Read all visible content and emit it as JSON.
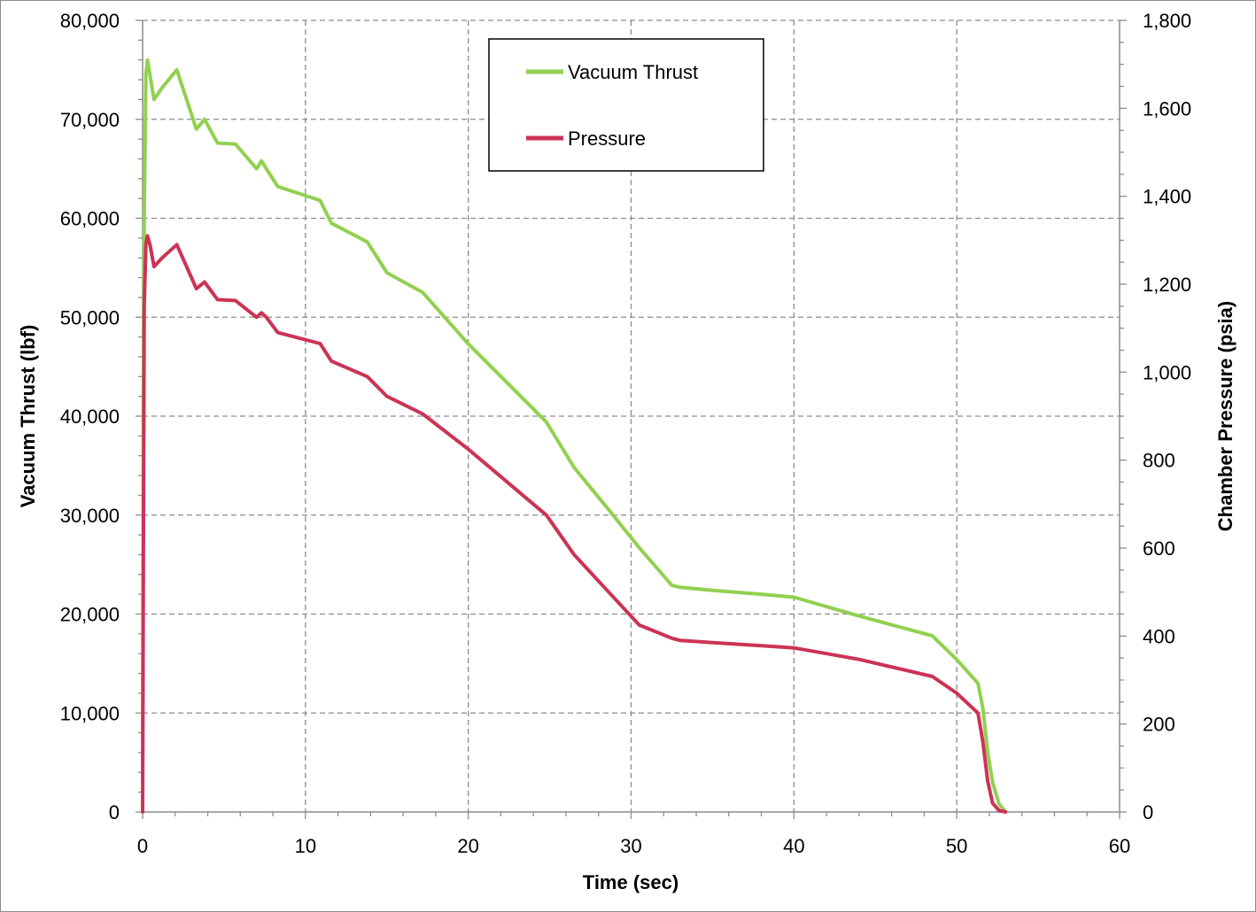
{
  "chart_data": {
    "type": "line",
    "title": "",
    "xlabel": "Time (sec)",
    "ylabel": "Vacuum Thrust (lbf)",
    "y2label": "Chamber Pressure (psia)",
    "xlim": [
      0,
      60
    ],
    "ylim": [
      0,
      80000
    ],
    "y2lim": [
      0,
      1800
    ],
    "x_ticks": [
      0,
      10,
      20,
      30,
      40,
      50,
      60
    ],
    "x_tick_labels": [
      "0",
      "10",
      "20",
      "30",
      "40",
      "50",
      "60"
    ],
    "y_ticks": [
      0,
      10000,
      20000,
      30000,
      40000,
      50000,
      60000,
      70000,
      80000
    ],
    "y_tick_labels": [
      "0",
      "10,000",
      "20,000",
      "30,000",
      "40,000",
      "50,000",
      "60,000",
      "70,000",
      "80,000"
    ],
    "y2_ticks": [
      0,
      200,
      400,
      600,
      800,
      1000,
      1200,
      1400,
      1600,
      1800
    ],
    "y2_tick_labels": [
      "0",
      "200",
      "400",
      "600",
      "800",
      "1,000",
      "1,200",
      "1,400",
      "1,600",
      "1,800"
    ],
    "grid": true,
    "legend_position": "top-center",
    "series": [
      {
        "name": "Vacuum Thrust",
        "axis": "left",
        "color": "#92d050",
        "x": [
          0,
          0.05,
          0.1,
          0.2,
          0.3,
          0.45,
          0.7,
          1.2,
          2.1,
          3.3,
          3.8,
          4.6,
          5.7,
          7.0,
          7.3,
          7.6,
          8.3,
          10.9,
          11.6,
          13.8,
          15.0,
          17.2,
          20.0,
          24.8,
          26.5,
          28.5,
          30.5,
          32.5,
          33.0,
          35.0,
          38.0,
          40.0,
          44.0,
          48.5,
          50.0,
          51.3,
          51.6,
          51.9,
          52.2,
          52.6,
          53.0
        ],
        "y": [
          3000,
          42000,
          60000,
          74500,
          76000,
          74500,
          72000,
          73200,
          75000,
          69000,
          70000,
          67600,
          67500,
          65000,
          65800,
          65000,
          63200,
          61800,
          59500,
          57600,
          54500,
          52500,
          47300,
          39400,
          34800,
          30800,
          26700,
          22900,
          22700,
          22400,
          22000,
          21700,
          19800,
          17800,
          15400,
          13000,
          10500,
          6000,
          3000,
          800,
          0
        ]
      },
      {
        "name": "Pressure",
        "axis": "right",
        "color": "#cc3355",
        "x": [
          0,
          0.05,
          0.1,
          0.2,
          0.3,
          0.45,
          0.7,
          1.2,
          2.1,
          3.3,
          3.8,
          4.6,
          5.7,
          7.0,
          7.3,
          7.6,
          8.3,
          10.9,
          11.6,
          13.8,
          15.0,
          17.2,
          20.0,
          24.8,
          26.5,
          28.5,
          30.5,
          32.5,
          33.0,
          35.0,
          38.0,
          40.0,
          44.0,
          48.5,
          50.0,
          51.3,
          51.6,
          51.9,
          52.2,
          52.6,
          53.0
        ],
        "y": [
          0,
          600,
          1150,
          1290,
          1310,
          1290,
          1240,
          1260,
          1290,
          1190,
          1205,
          1165,
          1163,
          1125,
          1135,
          1125,
          1090,
          1065,
          1025,
          990,
          945,
          905,
          825,
          675,
          585,
          505,
          425,
          395,
          390,
          385,
          378,
          373,
          347,
          308,
          270,
          225,
          160,
          70,
          20,
          3,
          0
        ]
      }
    ]
  }
}
